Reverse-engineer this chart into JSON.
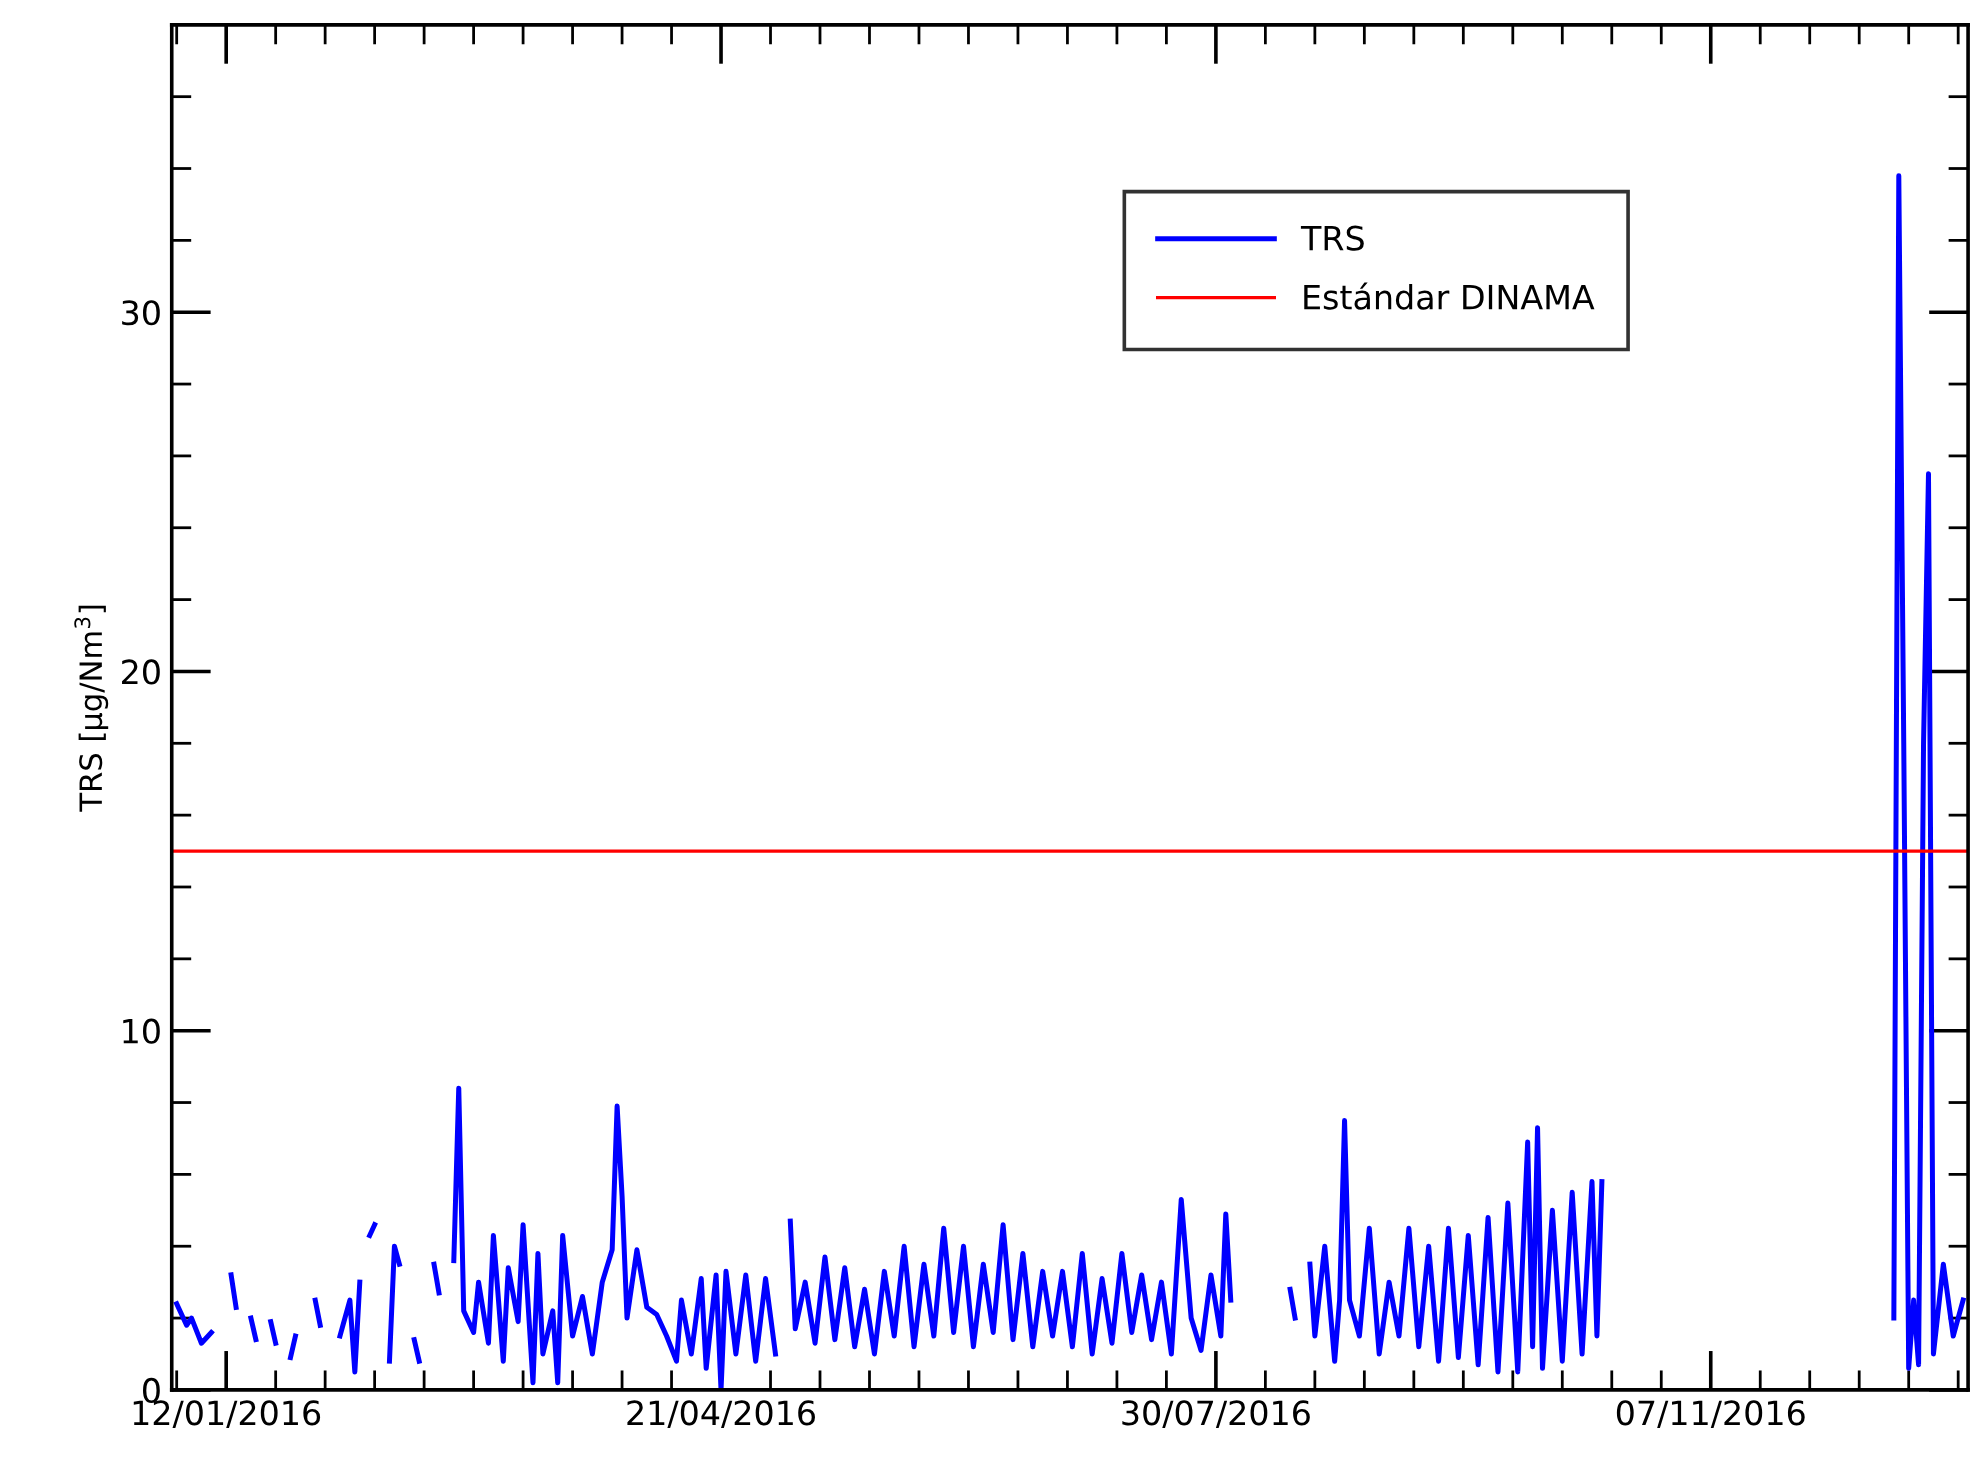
{
  "chart_data": {
    "type": "line",
    "ylabel": "TRS [µg/Nm$^{3}$]",
    "legend": "top right",
    "grid": false,
    "marker": "none",
    "line_style": "solid",
    "xlim": [
      "2016-01-01",
      "2016-12-29"
    ],
    "ylim": [
      0,
      38
    ],
    "xticks": [
      {
        "value": "2016-01-02",
        "label": null
      },
      {
        "value": "2016-01-12",
        "label": "12/01/2016"
      },
      {
        "value": "2016-01-22",
        "label": null
      },
      {
        "value": "2016-02-01",
        "label": null
      },
      {
        "value": "2016-02-11",
        "label": null
      },
      {
        "value": "2016-02-21",
        "label": null
      },
      {
        "value": "2016-03-02",
        "label": null
      },
      {
        "value": "2016-03-12",
        "label": null
      },
      {
        "value": "2016-03-22",
        "label": null
      },
      {
        "value": "2016-04-01",
        "label": null
      },
      {
        "value": "2016-04-11",
        "label": null
      },
      {
        "value": "2016-04-21",
        "label": "21/04/2016"
      },
      {
        "value": "2016-05-01",
        "label": null
      },
      {
        "value": "2016-05-11",
        "label": null
      },
      {
        "value": "2016-05-21",
        "label": null
      },
      {
        "value": "2016-05-31",
        "label": null
      },
      {
        "value": "2016-06-10",
        "label": null
      },
      {
        "value": "2016-06-20",
        "label": null
      },
      {
        "value": "2016-06-30",
        "label": null
      },
      {
        "value": "2016-07-10",
        "label": null
      },
      {
        "value": "2016-07-20",
        "label": null
      },
      {
        "value": "2016-07-30",
        "label": "30/07/2016"
      },
      {
        "value": "2016-08-09",
        "label": null
      },
      {
        "value": "2016-08-19",
        "label": null
      },
      {
        "value": "2016-08-29",
        "label": null
      },
      {
        "value": "2016-09-08",
        "label": null
      },
      {
        "value": "2016-09-18",
        "label": null
      },
      {
        "value": "2016-09-28",
        "label": null
      },
      {
        "value": "2016-10-08",
        "label": null
      },
      {
        "value": "2016-10-18",
        "label": null
      },
      {
        "value": "2016-10-28",
        "label": null
      },
      {
        "value": "2016-11-07",
        "label": "07/11/2016"
      },
      {
        "value": "2016-11-17",
        "label": null
      },
      {
        "value": "2016-11-27",
        "label": null
      },
      {
        "value": "2016-12-07",
        "label": null
      },
      {
        "value": "2016-12-17",
        "label": null
      },
      {
        "value": "2016-12-27",
        "label": null
      }
    ],
    "yticks": [
      0,
      {
        "value": 2,
        "label": null
      },
      {
        "value": 4,
        "label": null
      },
      {
        "value": 6,
        "label": null
      },
      {
        "value": 8,
        "label": null
      },
      10,
      {
        "value": 12,
        "label": null
      },
      {
        "value": 14,
        "label": null
      },
      {
        "value": 16,
        "label": null
      },
      {
        "value": 18,
        "label": null
      },
      20,
      {
        "value": 22,
        "label": null
      },
      {
        "value": 24,
        "label": null
      },
      {
        "value": 26,
        "label": null
      },
      {
        "value": 28,
        "label": null
      },
      30,
      {
        "value": 32,
        "label": null
      },
      {
        "value": 34,
        "label": null
      },
      {
        "value": 36,
        "label": null
      }
    ],
    "ref_lines": [
      {
        "axis": "y",
        "value": 15,
        "label": "Estándar DINAMA",
        "color": "#ff0000",
        "line_style": "solid"
      }
    ],
    "series": [
      {
        "name": "TRS",
        "color": "#0000ff",
        "x": [
          "2016-01-02",
          "2016-01-04",
          "2016-01-05",
          "2016-01-07",
          "2016-01-09",
          "2016-01-10",
          "2016-01-13",
          "2016-01-14",
          "2016-01-15",
          "2016-01-17",
          "2016-01-18",
          "2016-01-19",
          "2016-01-21",
          "2016-01-22",
          "2016-01-23",
          "2016-01-25",
          "2016-01-26",
          "2016-01-27",
          "2016-01-30",
          "2016-01-31",
          "2016-02-01",
          "2016-02-04",
          "2016-02-06",
          "2016-02-07",
          "2016-02-08",
          "2016-02-09",
          "2016-02-10",
          "2016-02-11",
          "2016-02-12",
          "2016-02-14",
          "2016-02-15",
          "2016-02-16",
          "2016-02-17",
          "2016-02-19",
          "2016-02-20",
          "2016-02-21",
          "2016-02-23",
          "2016-02-24",
          "2016-02-25",
          "2016-02-27",
          "2016-02-28",
          "2016-02-29",
          "2016-03-02",
          "2016-03-03",
          "2016-03-05",
          "2016-03-06",
          "2016-03-08",
          "2016-03-09",
          "2016-03-11",
          "2016-03-12",
          "2016-03-14",
          "2016-03-15",
          "2016-03-16",
          "2016-03-18",
          "2016-03-19",
          "2016-03-20",
          "2016-03-22",
          "2016-03-24",
          "2016-03-26",
          "2016-03-28",
          "2016-03-30",
          "2016-03-31",
          "2016-04-01",
          "2016-04-02",
          "2016-04-04",
          "2016-04-06",
          "2016-04-08",
          "2016-04-10",
          "2016-04-12",
          "2016-04-13",
          "2016-04-15",
          "2016-04-17",
          "2016-04-18",
          "2016-04-20",
          "2016-04-21",
          "2016-04-22",
          "2016-04-24",
          "2016-04-26",
          "2016-04-28",
          "2016-04-30",
          "2016-05-02",
          "2016-05-03",
          "2016-05-05",
          "2016-05-06",
          "2016-05-08",
          "2016-05-10",
          "2016-05-12",
          "2016-05-14",
          "2016-05-16",
          "2016-05-18",
          "2016-05-20",
          "2016-05-22",
          "2016-05-24",
          "2016-05-26",
          "2016-05-28",
          "2016-05-30",
          "2016-06-01",
          "2016-06-03",
          "2016-06-05",
          "2016-06-07",
          "2016-06-09",
          "2016-06-11",
          "2016-06-13",
          "2016-06-15",
          "2016-06-17",
          "2016-06-19",
          "2016-06-21",
          "2016-06-23",
          "2016-06-25",
          "2016-06-27",
          "2016-06-29",
          "2016-07-01",
          "2016-07-03",
          "2016-07-05",
          "2016-07-07",
          "2016-07-09",
          "2016-07-11",
          "2016-07-13",
          "2016-07-15",
          "2016-07-17",
          "2016-07-19",
          "2016-07-21",
          "2016-07-23",
          "2016-07-25",
          "2016-07-27",
          "2016-07-29",
          "2016-07-31",
          "2016-08-01",
          "2016-08-02",
          "2016-08-03",
          "2016-08-14",
          "2016-08-15",
          "2016-08-16",
          "2016-08-18",
          "2016-08-19",
          "2016-08-21",
          "2016-08-23",
          "2016-08-24",
          "2016-08-25",
          "2016-08-26",
          "2016-08-28",
          "2016-08-30",
          "2016-09-01",
          "2016-09-03",
          "2016-09-05",
          "2016-09-07",
          "2016-09-09",
          "2016-09-11",
          "2016-09-13",
          "2016-09-15",
          "2016-09-17",
          "2016-09-19",
          "2016-09-21",
          "2016-09-23",
          "2016-09-25",
          "2016-09-27",
          "2016-09-29",
          "2016-10-01",
          "2016-10-02",
          "2016-10-03",
          "2016-10-04",
          "2016-10-06",
          "2016-10-08",
          "2016-10-10",
          "2016-10-12",
          "2016-10-14",
          "2016-10-15",
          "2016-10-16",
          "2016-10-17",
          "2016-12-14",
          "2016-12-15",
          "2016-12-16",
          "2016-12-17",
          "2016-12-18",
          "2016-12-19",
          "2016-12-20",
          "2016-12-21",
          "2016-12-22",
          "2016-12-24",
          "2016-12-26",
          "2016-12-28"
        ],
        "values": [
          2.4,
          1.8,
          2.0,
          1.3,
          1.6,
          null,
          3.2,
          2.3,
          null,
          2.0,
          1.4,
          null,
          1.9,
          1.3,
          null,
          0.9,
          1.5,
          null,
          2.5,
          1.8,
          null,
          1.5,
          2.5,
          0.5,
          3.0,
          null,
          4.3,
          4.6,
          null,
          0.8,
          4.0,
          3.5,
          null,
          1.4,
          0.8,
          null,
          3.5,
          2.7,
          null,
          3.6,
          8.4,
          2.2,
          1.6,
          3.0,
          1.3,
          4.3,
          0.8,
          3.4,
          1.9,
          4.6,
          0.2,
          3.8,
          1.0,
          2.2,
          0.2,
          4.3,
          1.5,
          2.6,
          1.0,
          3.0,
          3.9,
          7.9,
          5.4,
          2.0,
          3.9,
          2.3,
          2.1,
          1.5,
          0.8,
          2.5,
          1.0,
          3.1,
          0.6,
          3.2,
          0.0,
          3.3,
          1.0,
          3.2,
          0.8,
          3.1,
          1.0,
          null,
          4.7,
          1.7,
          3.0,
          1.3,
          3.7,
          1.4,
          3.4,
          1.2,
          2.8,
          1.0,
          3.3,
          1.5,
          4.0,
          1.2,
          3.5,
          1.5,
          4.5,
          1.6,
          4.0,
          1.2,
          3.5,
          1.6,
          4.6,
          1.4,
          3.8,
          1.2,
          3.3,
          1.5,
          3.3,
          1.2,
          3.8,
          1.0,
          3.1,
          1.3,
          3.8,
          1.6,
          3.2,
          1.4,
          3.0,
          1.0,
          5.3,
          2.0,
          1.1,
          3.2,
          1.5,
          4.9,
          2.5,
          null,
          2.8,
          2.0,
          null,
          3.5,
          1.5,
          4.0,
          0.8,
          2.5,
          7.5,
          2.5,
          1.5,
          4.5,
          1.0,
          3.0,
          1.5,
          4.5,
          1.2,
          4.0,
          0.8,
          4.5,
          0.9,
          4.3,
          0.7,
          4.8,
          0.5,
          5.2,
          0.5,
          6.9,
          1.2,
          7.3,
          0.6,
          5.0,
          0.8,
          5.5,
          1.0,
          5.8,
          1.5,
          5.8,
          null,
          2.0,
          33.8,
          18.0,
          0.6,
          2.5,
          0.7,
          18.0,
          25.5,
          1.0,
          3.5,
          1.5,
          2.5
        ]
      }
    ]
  }
}
